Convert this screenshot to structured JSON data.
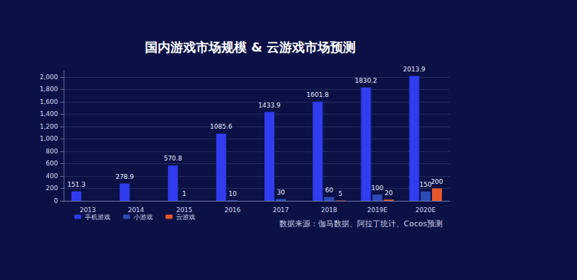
{
  "chart_data": {
    "type": "bar",
    "title": "国内游戏市场规模 & 云游戏市场预测",
    "annotations": [
      "数据来源：伽马数据、阿拉丁统计、Cocos预测"
    ],
    "categories": [
      "2013",
      "2014",
      "2015",
      "2016",
      "2017",
      "2018",
      "2019E",
      "2020E"
    ],
    "series": [
      {
        "name": "手机游戏",
        "color": "#2f3cf0",
        "values": [
          151.3,
          278.9,
          570.8,
          1085.6,
          1433.9,
          1601.8,
          1830.2,
          2013.9
        ]
      },
      {
        "name": "小游戏",
        "color": "#2c4bb8",
        "values": [
          null,
          null,
          1,
          10,
          30,
          60,
          100,
          150
        ]
      },
      {
        "name": "云游戏",
        "color": "#e8582c",
        "values": [
          null,
          null,
          null,
          null,
          null,
          5,
          20,
          200
        ]
      }
    ],
    "ylim": [
      0,
      2100
    ],
    "yticks": [
      0,
      200,
      400,
      600,
      800,
      1000,
      1200,
      1400,
      1600,
      1800,
      2000
    ],
    "grid": true,
    "legend": "bottom",
    "data_labels": true
  }
}
